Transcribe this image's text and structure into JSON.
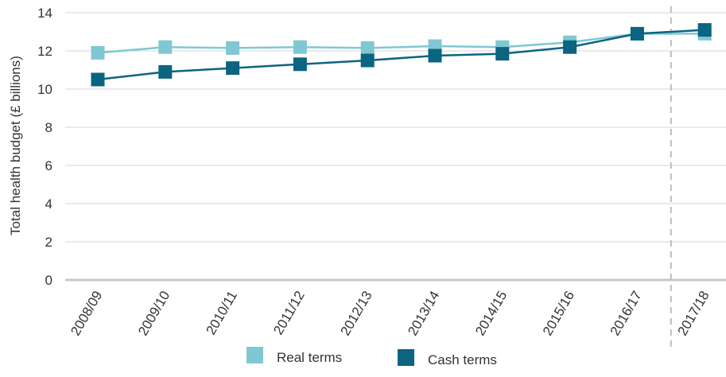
{
  "chart_data": {
    "type": "line",
    "title": "",
    "xlabel": "",
    "ylabel": "Total health budget (£ billions)",
    "categories": [
      "2008/09",
      "2009/10",
      "2010/11",
      "2011/12",
      "2012/13",
      "2013/14",
      "2014/15",
      "2015/16",
      "2016/17",
      "2017/18"
    ],
    "ylim": [
      0,
      14
    ],
    "yticks": [
      0,
      2,
      4,
      6,
      8,
      10,
      12,
      14
    ],
    "grid": true,
    "legend_position": "bottom",
    "series": [
      {
        "name": "Real terms",
        "color": "#7fc8d3",
        "marker": "square",
        "values": [
          11.9,
          12.2,
          12.15,
          12.2,
          12.15,
          12.25,
          12.2,
          12.45,
          12.9,
          12.9
        ]
      },
      {
        "name": "Cash terms",
        "color": "#0b6480",
        "marker": "square",
        "values": [
          10.5,
          10.9,
          11.1,
          11.3,
          11.5,
          11.75,
          11.85,
          12.2,
          12.9,
          13.1
        ]
      }
    ],
    "annotations": [
      {
        "type": "vertical-dashed-line",
        "between": [
          "2016/17",
          "2017/18"
        ]
      }
    ]
  }
}
